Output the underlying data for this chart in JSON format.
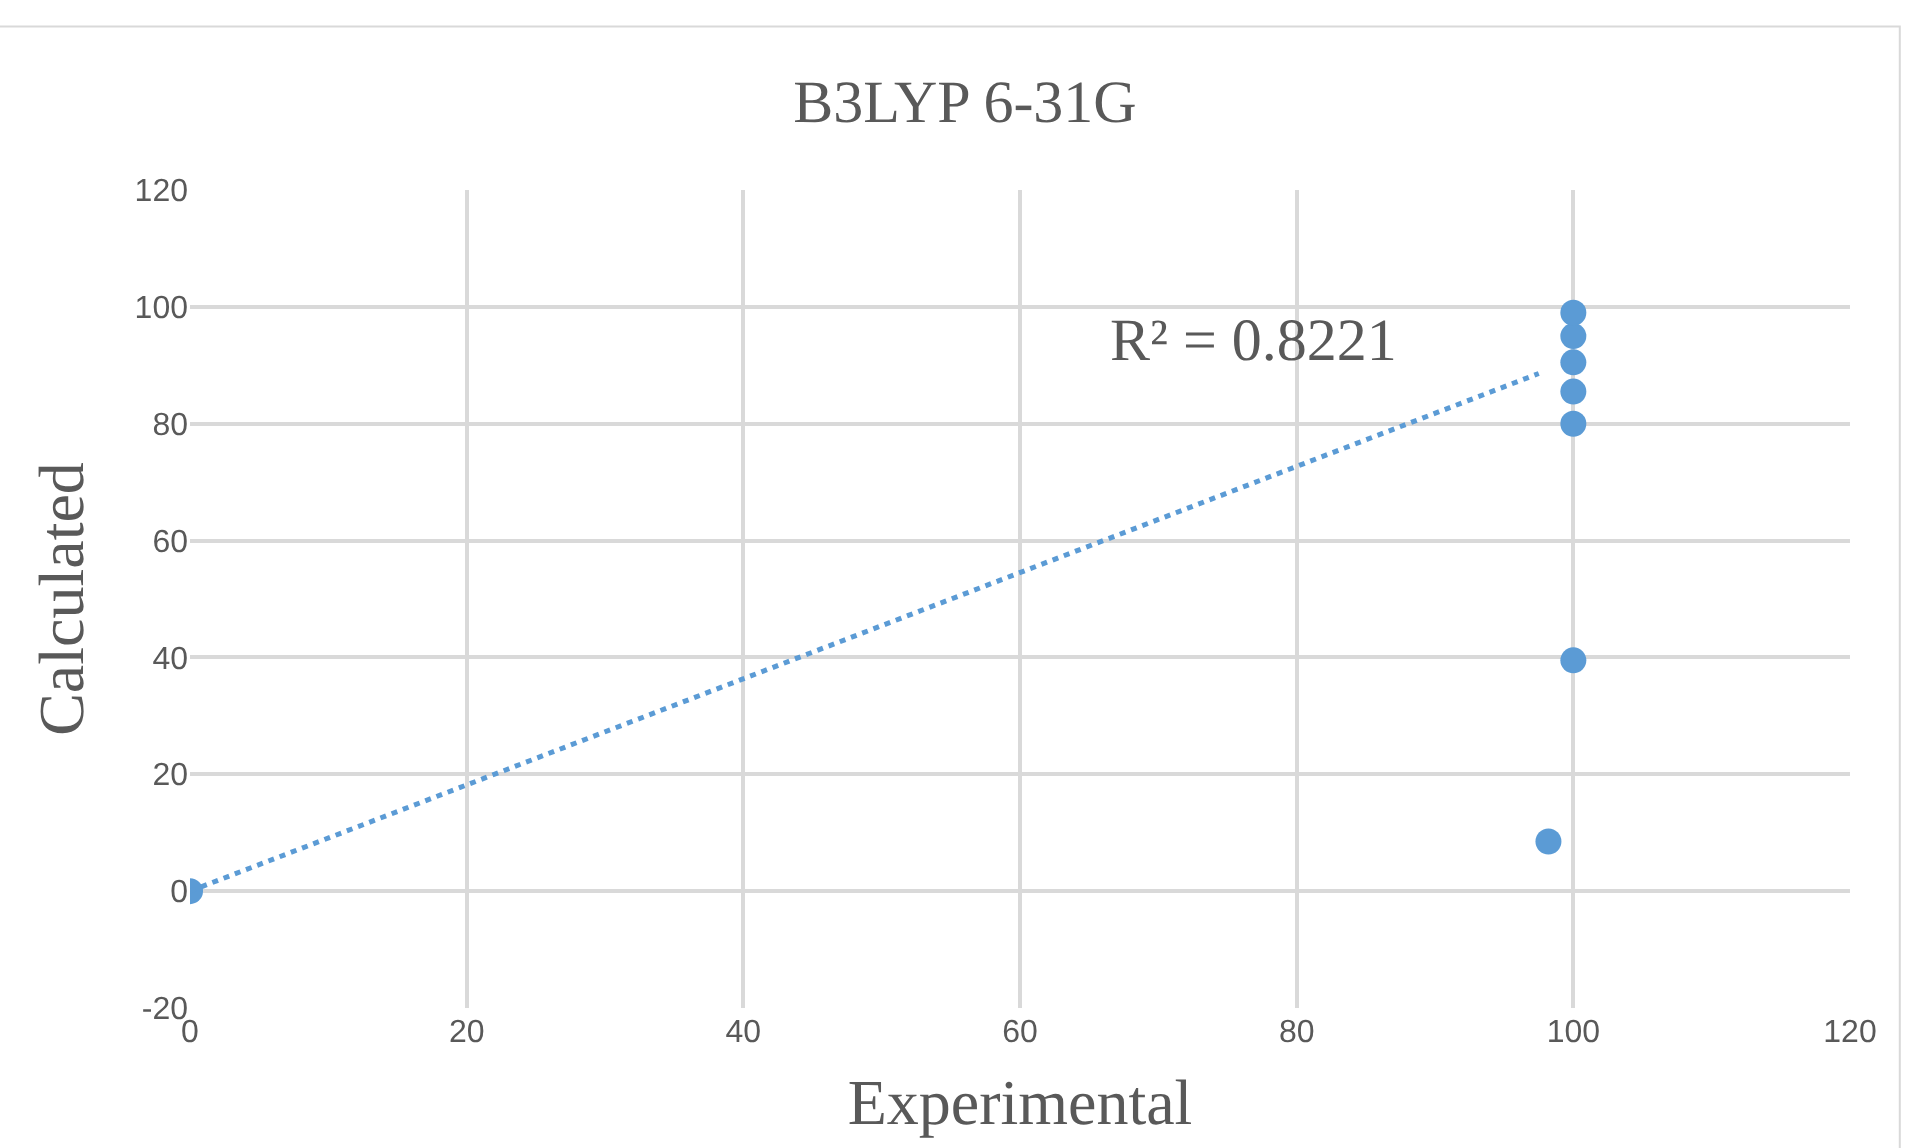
{
  "chart_data": {
    "type": "scatter",
    "title": "B3LYP 6-31G",
    "xlabel": "Experimental",
    "ylabel": "Calculated",
    "xlim": [
      0,
      120
    ],
    "xticks": [
      0,
      20,
      40,
      60,
      80,
      100,
      120
    ],
    "ylim": [
      -20,
      120
    ],
    "yticks": [
      -20,
      0,
      20,
      40,
      60,
      80,
      100,
      120
    ],
    "grid": true,
    "marker": "circle",
    "annotations": [
      "R² = 0.8221"
    ],
    "series": [
      {
        "color": "#5b9bd5",
        "x": [
          0,
          98.2,
          100,
          100,
          100,
          100,
          100,
          100
        ],
        "values": [
          0,
          8.5,
          39.5,
          80,
          85.5,
          90.5,
          95,
          99
        ]
      },
      {
        "type": "line",
        "color": "#5b9bd5",
        "line_style": "dotted",
        "marker": "none",
        "x": [
          0,
          97.5
        ],
        "values": [
          0,
          88.6
        ]
      }
    ]
  }
}
